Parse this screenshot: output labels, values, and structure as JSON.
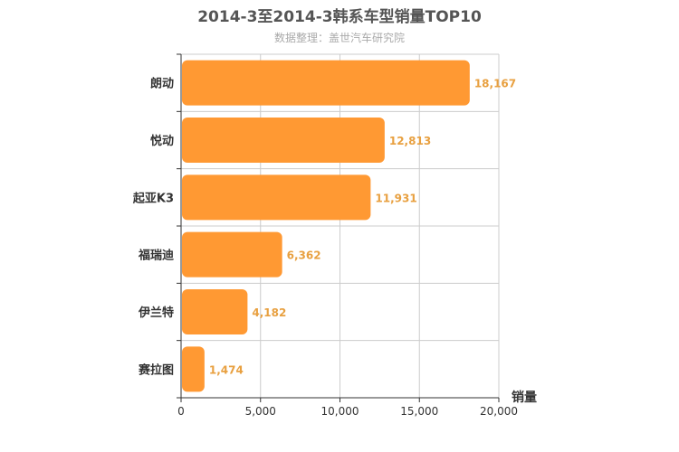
{
  "chart_data": {
    "type": "bar",
    "orientation": "horizontal",
    "title": "2014-3至2014-3韩系车型销量TOP10",
    "subtitle": "数据整理：盖世汽车研究院",
    "categories": [
      "朗动",
      "悦动",
      "起亚K3",
      "福瑞迪",
      "伊兰特",
      "赛拉图"
    ],
    "values": [
      18167,
      12813,
      11931,
      6362,
      4182,
      1474
    ],
    "value_labels": [
      "18,167",
      "12,813",
      "11,931",
      "6,362",
      "4,182",
      "1,474"
    ],
    "xlabel": "销量",
    "ylabel": "",
    "xlim": [
      0,
      20000
    ],
    "x_ticks": [
      0,
      5000,
      10000,
      15000,
      20000
    ],
    "x_tick_labels": [
      "0",
      "5,000",
      "10,000",
      "15,000",
      "20,000"
    ],
    "grid": true,
    "bar_color": "#ff9933",
    "label_color": "#e8a040"
  }
}
